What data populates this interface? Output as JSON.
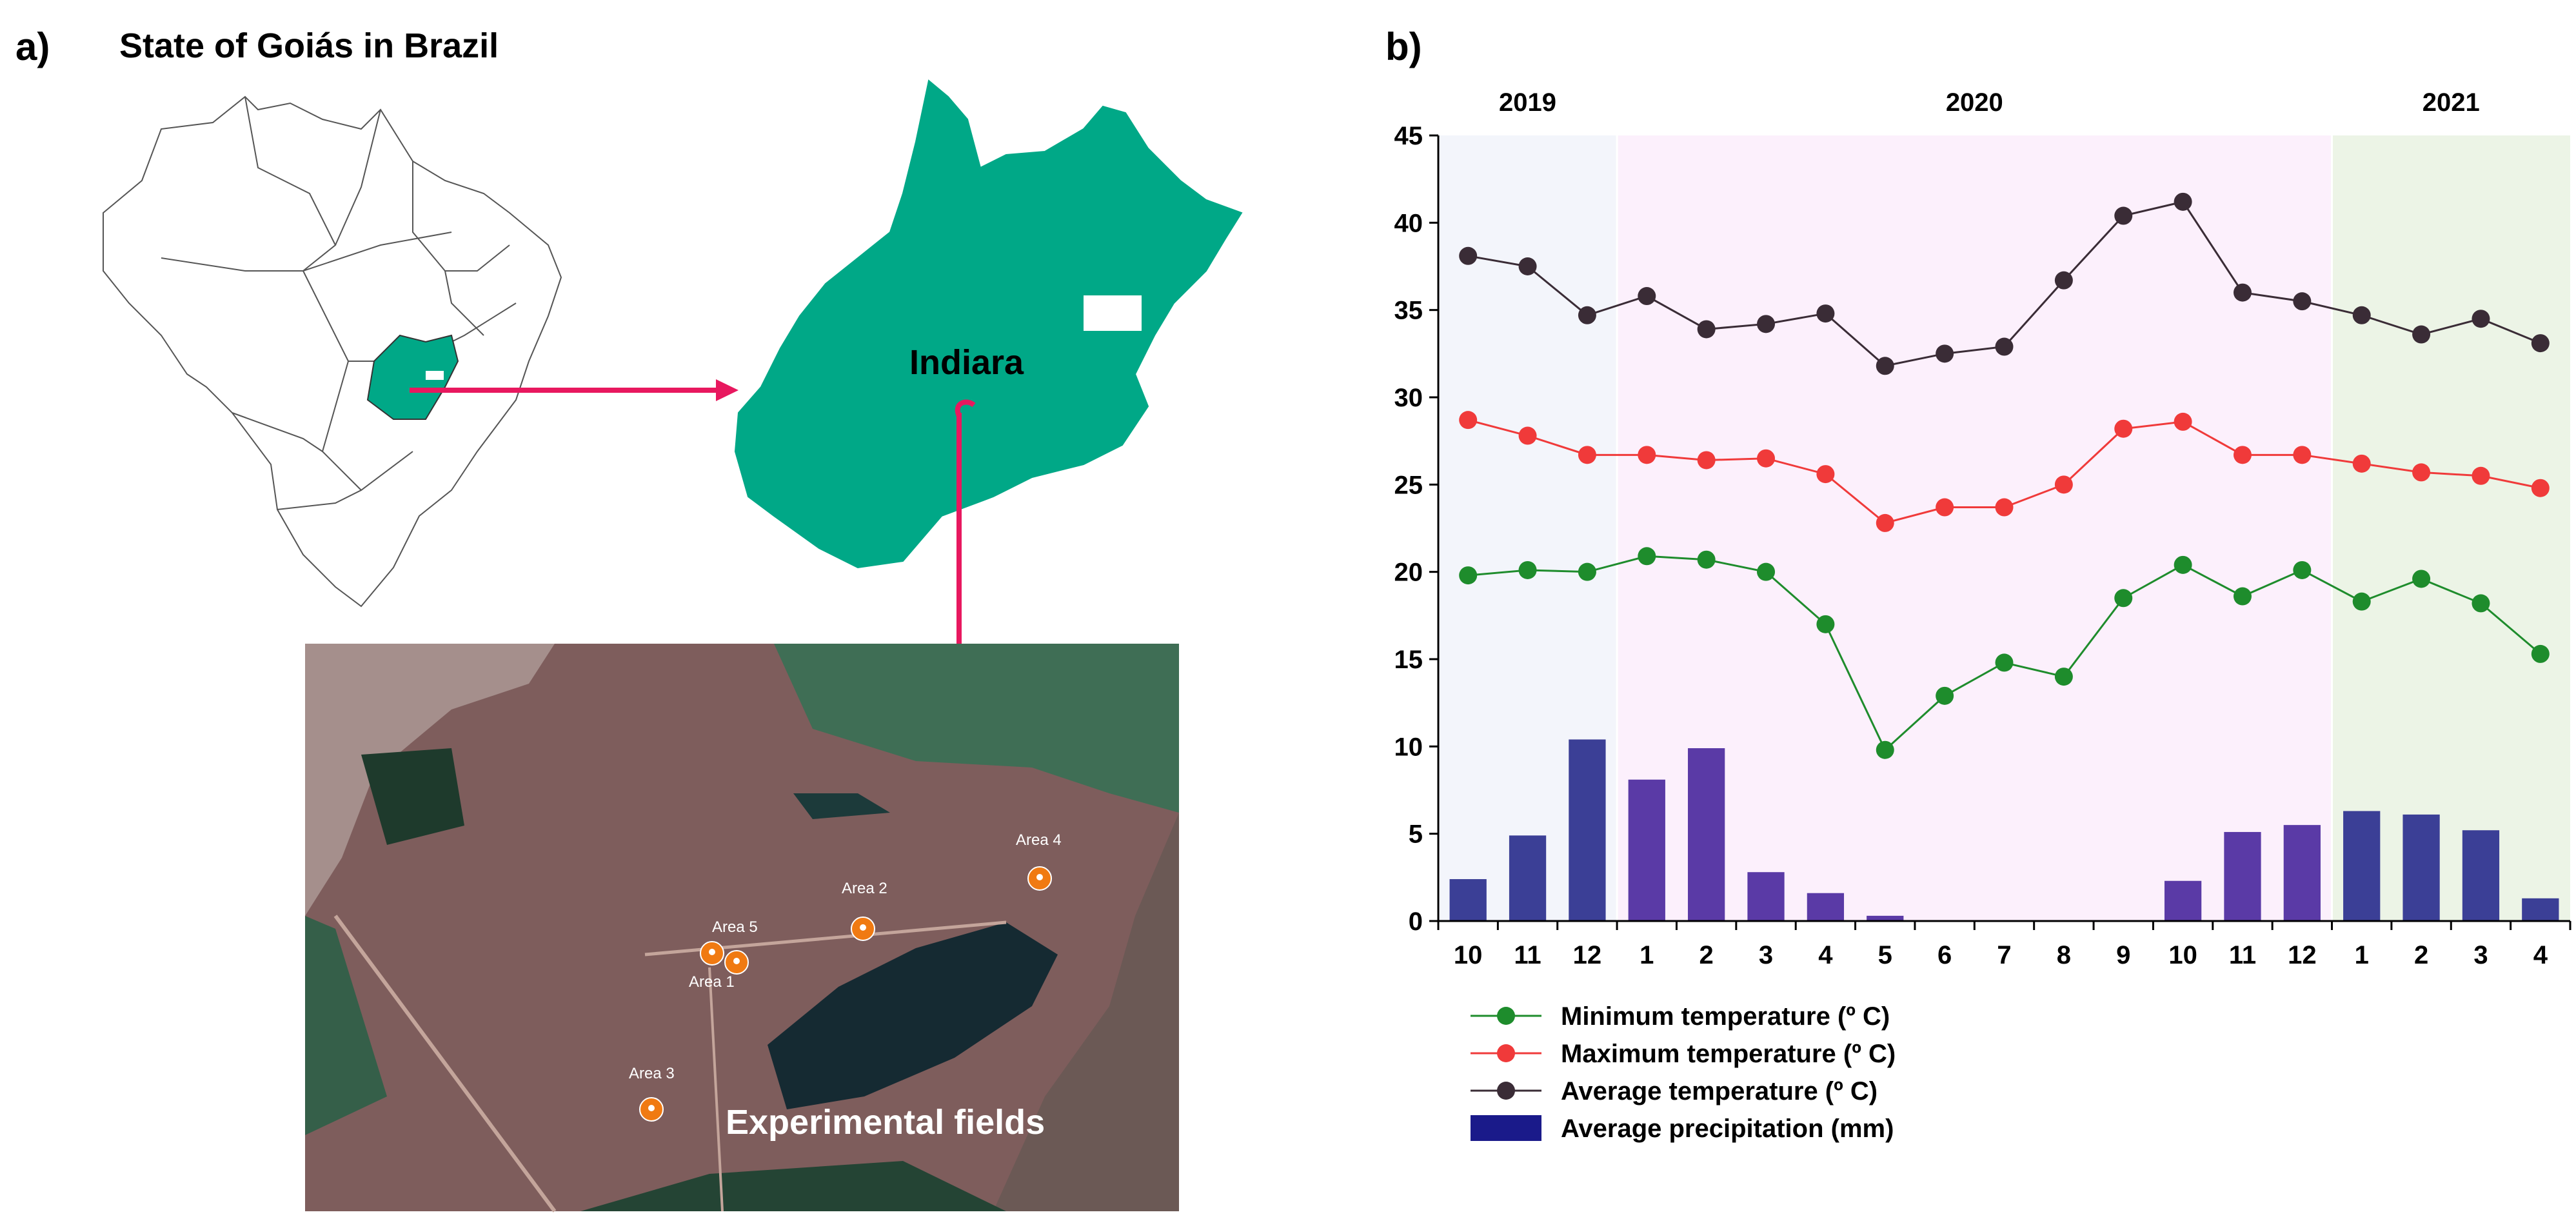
{
  "panel_a": {
    "label": "a)",
    "title": "State of Goiás in Brazil",
    "city": "Indiara",
    "photo_caption": "Experimental fields",
    "areas": [
      "Area 1",
      "Area 2",
      "Area 3",
      "Area 4",
      "Area 5"
    ],
    "colors": {
      "state": "#00a887",
      "arrow": "#e8185f",
      "pin": "#f07a12"
    }
  },
  "panel_b": {
    "label": "b)"
  },
  "chart_data": {
    "type": "line",
    "years": [
      {
        "label": "2019",
        "months": [
          "10",
          "11",
          "12"
        ],
        "background": "#f3f5fb"
      },
      {
        "label": "2020",
        "months": [
          "1",
          "2",
          "3",
          "4",
          "5",
          "6",
          "7",
          "8",
          "9",
          "10",
          "11",
          "12"
        ],
        "background": "#fcf0fc"
      },
      {
        "label": "2021",
        "months": [
          "1",
          "2",
          "3",
          "4"
        ],
        "background": "#ecf4e6"
      }
    ],
    "categories": [
      "10",
      "11",
      "12",
      "1",
      "2",
      "3",
      "4",
      "5",
      "6",
      "7",
      "8",
      "9",
      "10",
      "11",
      "12",
      "1",
      "2",
      "3",
      "4"
    ],
    "ylim": [
      0,
      45
    ],
    "yticks": [
      0,
      5,
      10,
      15,
      20,
      25,
      30,
      35,
      40,
      45
    ],
    "series": [
      {
        "name": "Minimum temperature (º C)",
        "type": "line",
        "color": "#1e8c2c",
        "values": [
          19.8,
          20.1,
          20.0,
          20.9,
          20.7,
          20.0,
          17.0,
          9.8,
          12.9,
          14.8,
          14.0,
          18.5,
          20.4,
          18.6,
          20.1,
          18.3,
          19.6,
          18.2,
          15.3
        ]
      },
      {
        "name": "Maximum temperature (º C)",
        "type": "line",
        "color": "#f03a3a",
        "values": [
          28.7,
          27.8,
          26.7,
          26.7,
          26.4,
          26.5,
          25.6,
          22.8,
          23.7,
          23.7,
          25.0,
          28.2,
          28.6,
          26.7,
          26.7,
          26.2,
          25.7,
          25.5,
          24.8
        ]
      },
      {
        "name": "Average temperature (º C)",
        "type": "line",
        "color": "#3a2c36",
        "values": [
          38.1,
          37.5,
          34.7,
          35.8,
          33.9,
          34.2,
          34.8,
          31.8,
          32.5,
          32.9,
          36.7,
          40.4,
          41.2,
          36.0,
          35.5,
          34.7,
          33.6,
          34.5,
          33.1
        ]
      },
      {
        "name": "Average precipitation (mm)",
        "type": "bar",
        "color": "#1a1a8a",
        "bar_colors": [
          "#3b3f96",
          "#3b3f96",
          "#3b3f96",
          "#5a3aa6",
          "#5a3aa6",
          "#5a3aa6",
          "#5a3aa6",
          "#5a3aa6",
          "#5a3aa6",
          "#5a3aa6",
          "#5a3aa6",
          "#5a3aa6",
          "#5a3aa6",
          "#5a3aa6",
          "#5a3aa6",
          "#3b3f96",
          "#3b3f96",
          "#3b3f96",
          "#3b3f96"
        ],
        "values": [
          2.4,
          4.9,
          10.4,
          8.1,
          9.9,
          2.8,
          1.6,
          0.3,
          0,
          0,
          0,
          0,
          2.3,
          5.1,
          5.5,
          6.3,
          6.1,
          5.2,
          1.3
        ]
      }
    ],
    "legend_position": "bottom-left",
    "grid": false
  }
}
